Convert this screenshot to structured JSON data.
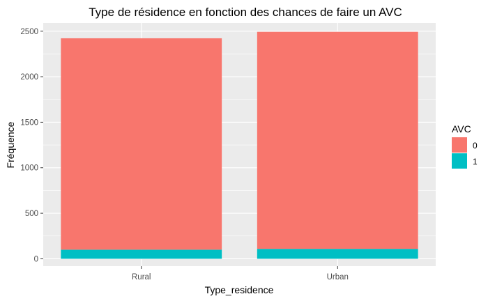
{
  "chart_data": {
    "type": "bar",
    "stacked": true,
    "title": "Type de résidence en fonction des chances de faire un AVC",
    "xlabel": "Type_residence",
    "ylabel": "Fréquence",
    "categories": [
      "Rural",
      "Urban"
    ],
    "series": [
      {
        "name": "0",
        "values": [
          2322,
          2384
        ],
        "color": "#F8766D"
      },
      {
        "name": "1",
        "values": [
          100,
          109
        ],
        "color": "#00BFC4"
      }
    ],
    "ylim": [
      0,
      2590
    ],
    "yticks": [
      0,
      500,
      1000,
      1500,
      2000,
      2500
    ],
    "grid": true,
    "legend": {
      "title": "AVC",
      "position": "right"
    },
    "panel_background": "#EBEBEB",
    "grid_color": "#FFFFFF"
  }
}
